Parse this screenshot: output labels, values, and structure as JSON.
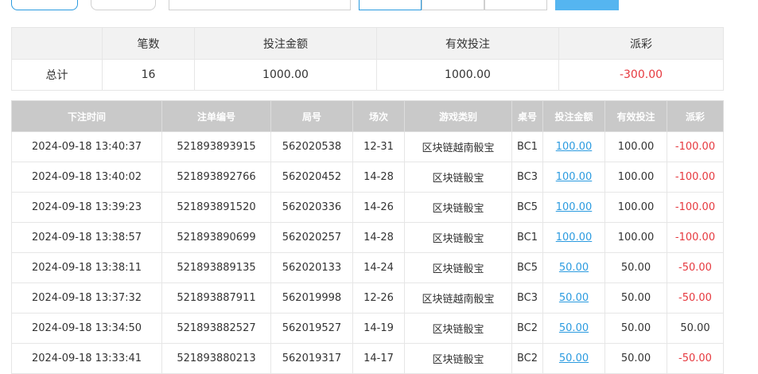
{
  "summary": {
    "headers": [
      "",
      "笔数",
      "投注金额",
      "有效投注",
      "派彩"
    ],
    "row": [
      "总计",
      "16",
      "1000.00",
      "1000.00",
      "-300.00"
    ]
  },
  "table": {
    "headers": [
      "下注时间",
      "注单编号",
      "局号",
      "场次",
      "游戏类别",
      "桌号",
      "投注金额",
      "有效投注",
      "派彩"
    ],
    "rows": [
      [
        "2024-09-18 13:40:37",
        "521893893915",
        "562020538",
        "12-31",
        "区块链越南骰宝",
        "BC1",
        "100.00",
        "100.00",
        "-100.00"
      ],
      [
        "2024-09-18 13:40:02",
        "521893892766",
        "562020452",
        "14-28",
        "区块链骰宝",
        "BC3",
        "100.00",
        "100.00",
        "-100.00"
      ],
      [
        "2024-09-18 13:39:23",
        "521893891520",
        "562020336",
        "14-26",
        "区块链骰宝",
        "BC5",
        "100.00",
        "100.00",
        "-100.00"
      ],
      [
        "2024-09-18 13:38:57",
        "521893890699",
        "562020257",
        "14-28",
        "区块链骰宝",
        "BC1",
        "100.00",
        "100.00",
        "-100.00"
      ],
      [
        "2024-09-18 13:38:11",
        "521893889135",
        "562020133",
        "14-24",
        "区块链骰宝",
        "BC5",
        "50.00",
        "50.00",
        "-50.00"
      ],
      [
        "2024-09-18 13:37:32",
        "521893887911",
        "562019998",
        "12-26",
        "区块链越南骰宝",
        "BC3",
        "50.00",
        "50.00",
        "-50.00"
      ],
      [
        "2024-09-18 13:34:50",
        "521893882527",
        "562019527",
        "14-19",
        "区块链骰宝",
        "BC2",
        "50.00",
        "50.00",
        "50.00"
      ],
      [
        "2024-09-18 13:33:41",
        "521893880213",
        "562019317",
        "14-17",
        "区块链骰宝",
        "BC2",
        "50.00",
        "50.00",
        "-50.00"
      ]
    ]
  }
}
